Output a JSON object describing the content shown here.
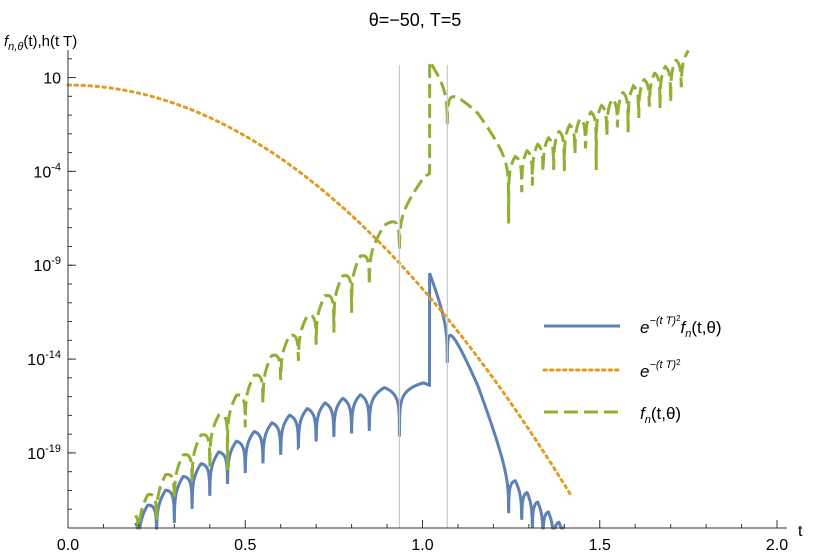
{
  "chart_data": {
    "type": "line",
    "title": "θ=−50, T=5",
    "ylabel": {
      "f": "f",
      "sub": "n,θ",
      "rest": "(t),h(t T)"
    },
    "xlabel": "t",
    "x_ticks": [
      "0.0",
      "0.5",
      "1.0",
      "1.5",
      "2.0"
    ],
    "y_ticks": [
      {
        "base": "10",
        "exp": "",
        "value": 10
      },
      {
        "base": "10",
        "exp": "-4",
        "value": 0.0001
      },
      {
        "base": "10",
        "exp": "-9",
        "value": 1e-09
      },
      {
        "base": "10",
        "exp": "-14",
        "value": 1e-14
      },
      {
        "base": "10",
        "exp": "-19",
        "value": 1e-19
      }
    ],
    "xlim": [
      0,
      2.0
    ],
    "ylim_log10": [
      -23,
      3
    ],
    "y_scale": "log",
    "grid": false,
    "legend_position": "right",
    "vertical_lines_x": [
      0.935,
      1.07
    ],
    "series": [
      {
        "name": "e^-(t T)^2 f_n(t,θ)",
        "legend": {
          "e": "e",
          "exp": "−(t T)",
          "exp2": "2",
          "f": "f",
          "sub": "n",
          "args": "(t,θ)"
        },
        "color": "#5e81b5",
        "style": "solid",
        "description_points": [
          [
            0.25,
            1e-21
          ],
          [
            0.5,
            1e-18
          ],
          [
            0.75,
            1e-16
          ],
          [
            0.9,
            1e-13
          ],
          [
            1.0,
            1e-10
          ],
          [
            1.1,
            1e-13
          ],
          [
            1.2,
            1e-18
          ],
          [
            1.4,
            1e-22
          ]
        ]
      },
      {
        "name": "e^-(t T)^2",
        "legend": {
          "e": "e",
          "exp": "−(t T)",
          "exp2": "2"
        },
        "color": "#e19c24",
        "style": "dotted",
        "description_points": [
          [
            0.0,
            1
          ],
          [
            0.2,
            0.37
          ],
          [
            0.4,
            0.0183
          ],
          [
            0.6,
            0.00012
          ],
          [
            0.8,
            1.1e-07
          ],
          [
            1.0,
            1.4e-11
          ],
          [
            1.2,
            2.7e-16
          ],
          [
            1.4,
            5.7e-22
          ]
        ]
      },
      {
        "name": "f_n(t,θ)",
        "legend": {
          "f": "f",
          "sub": "n",
          "args": "(t,θ)"
        },
        "color": "#8fb032",
        "style": "dashed",
        "description_points": [
          [
            0.2,
            1e-21
          ],
          [
            0.5,
            1e-15
          ],
          [
            0.8,
            1e-07
          ],
          [
            1.0,
            10
          ],
          [
            1.1,
            1
          ],
          [
            1.25,
            1e-06
          ],
          [
            1.5,
            1
          ],
          [
            1.75,
            100
          ]
        ]
      }
    ]
  }
}
